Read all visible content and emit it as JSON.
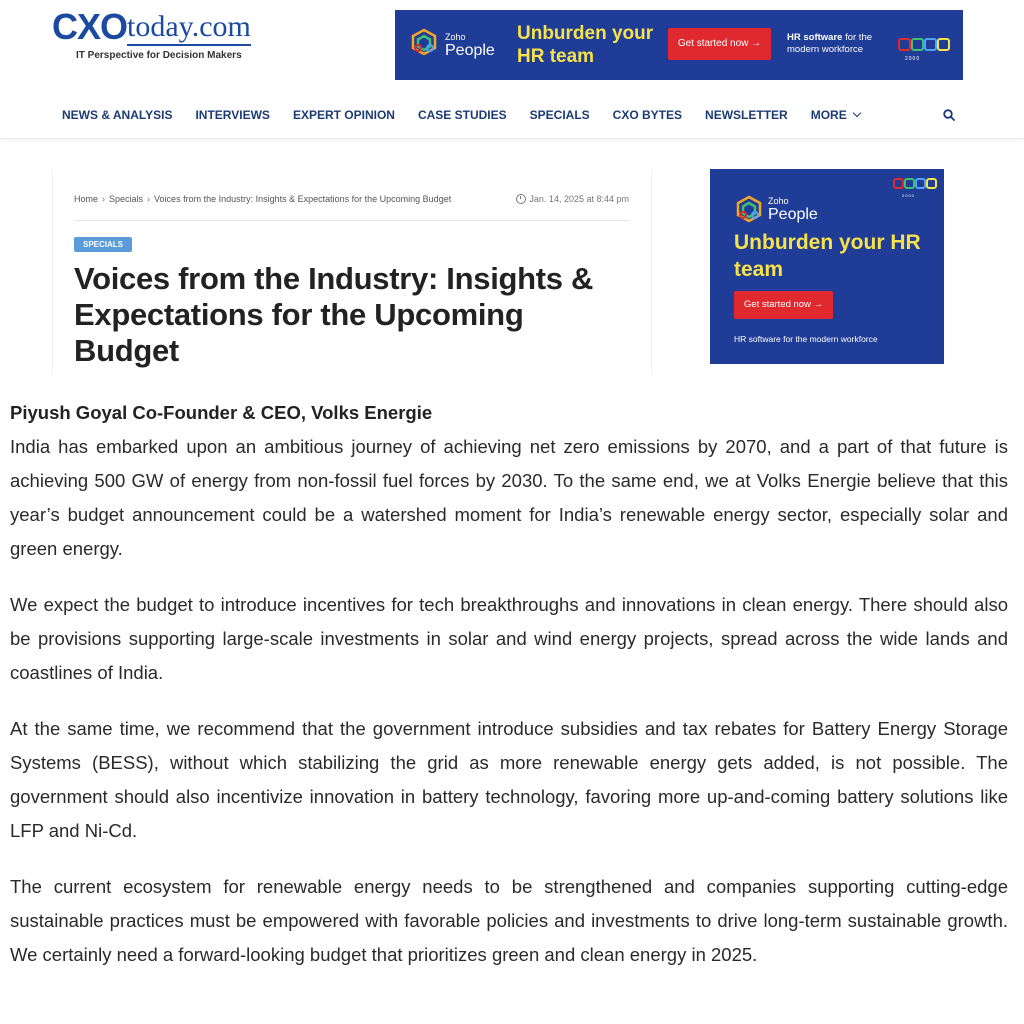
{
  "site": {
    "logo_cxo": "CXO",
    "logo_today": "today.com",
    "tagline": "IT Perspective for Decision Makers"
  },
  "top_banner": {
    "brand_small": "Zoho",
    "brand_name": "People",
    "headline": "Unburden your HR team",
    "cta": "Get started now →",
    "side_bold": "HR software",
    "side_rest": " for the modern workforce",
    "rings_caption": "2000"
  },
  "nav": {
    "items": [
      "NEWS & ANALYSIS",
      "INTERVIEWS",
      "EXPERT OPINION",
      "CASE STUDIES",
      "SPECIALS",
      "CXO BYTES",
      "NEWSLETTER"
    ],
    "more": "MORE",
    "search_icon": "search-icon"
  },
  "article": {
    "breadcrumb": [
      "Home",
      "Specials",
      "Voices from the Industry: Insights & Expectations for the Upcoming Budget"
    ],
    "date": "Jan. 14, 2025 at 8:44 pm",
    "category": "SPECIALS",
    "title": "Voices from the Industry: Insights & Expectations for the Upcoming Budget",
    "author": "Piyush Goyal Co-Founder & CEO, Volks Energie",
    "paragraphs": [
      "India has embarked upon an ambitious journey of achieving net zero emissions by 2070, and a part of that future is achieving 500 GW of energy from non-fossil fuel forces by 2030. To the same end, we at Volks Energie believe that this year’s budget announcement could be a watershed moment for India’s renewable energy sector, especially solar and green energy.",
      "We expect the budget to introduce incentives for tech breakthroughs and innovations in clean energy. There should also be provisions supporting large-scale investments in solar and wind energy projects, spread across the wide lands and coastlines of India.",
      "At the same time, we recommend that the government introduce subsidies and tax rebates for Battery Energy Storage Systems (BESS), without which stabilizing the grid as more renewable energy gets added, is not possible. The government should also incentivize innovation in battery technology, favoring more up-and-coming battery solutions like LFP and Ni-Cd.",
      "The current ecosystem for renewable energy needs to be strengthened and companies supporting cutting-edge sustainable practices must be empowered with favorable policies and investments to drive long-term sustainable growth. We certainly need a forward-looking budget that prioritizes green and clean energy in 2025."
    ]
  },
  "side_ad": {
    "brand_small": "Zoho",
    "brand_name": "People",
    "headline": "Unburden your HR team",
    "cta": "Get started now →",
    "footer": "HR software for the modern workforce",
    "rings_caption": "2000"
  },
  "colors": {
    "brand_blue": "#1b4aa0",
    "nav_text": "#1d3b73",
    "ad_background": "#1f3c96",
    "ad_headline": "#f6e24b",
    "ad_cta": "#e0282f",
    "badge": "#5b9bd9"
  }
}
